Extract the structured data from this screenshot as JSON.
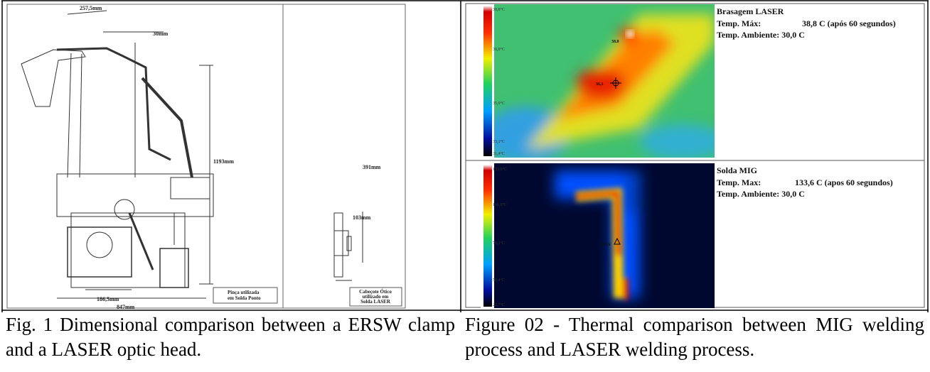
{
  "figure1": {
    "dimensions": [
      "257,5mm",
      "30mm",
      "1193mm",
      "391mm",
      "103mm",
      "186,5mm",
      "847mm"
    ],
    "clamp_label": [
      "Pinça utilizada",
      "em Solda Ponto"
    ],
    "head_label": [
      "Cabeçote Ótico",
      "utilizado em",
      "Solda LASER"
    ],
    "caption": "Fig. 1 Dimensional comparison between a ERSW clamp and a LASER optic head."
  },
  "figure2": {
    "panels": [
      {
        "title": "Brasagem LASER",
        "max_label": "Temp. Máx:",
        "max_value": "38,8 C (após 60 segundos)",
        "ambient": "Temp. Ambiente: 30,0 C",
        "scale": [
          "38,8°C",
          "36,9°C",
          "35,0°C",
          "33,1°C",
          "31,4°C"
        ],
        "markers": [
          "38,8",
          "36,1"
        ]
      },
      {
        "title": "Solda MIG",
        "max_label": "Temp. Max:",
        "max_value": "133,6 C (apos 60 segundos)",
        "ambient": "Temp. Ambiente: 30,0 C",
        "scale": [
          "133,6°C",
          "106,0°C",
          "78,1°C",
          "50,4°C",
          "22,7°C"
        ],
        "markers": [
          "133,6"
        ]
      }
    ],
    "caption": "Figure 02 - Thermal comparison between MIG welding process and LASER welding process."
  }
}
